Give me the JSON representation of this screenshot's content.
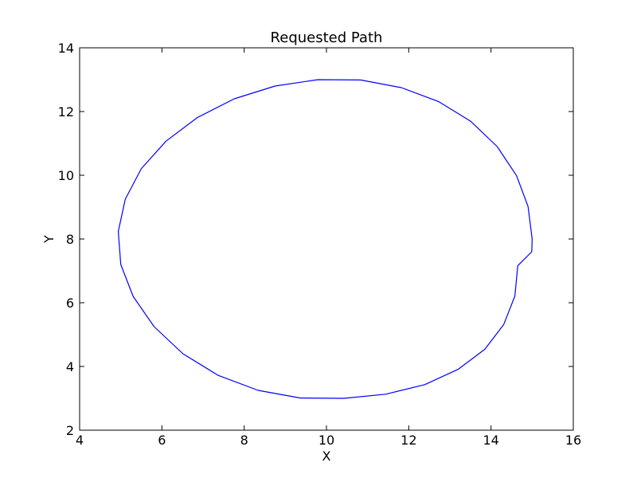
{
  "chart_data": {
    "type": "line",
    "title": "Requested Path",
    "xlabel": "X",
    "ylabel": "Y",
    "xlim": [
      4,
      16
    ],
    "ylim": [
      2,
      14
    ],
    "xticks": [
      4,
      6,
      8,
      10,
      12,
      14,
      16
    ],
    "yticks": [
      2,
      4,
      6,
      8,
      10,
      12,
      14
    ],
    "grid": false,
    "series": [
      {
        "color": "#0000ff",
        "x": [
          15.0,
          14.9,
          14.62,
          14.15,
          13.51,
          12.73,
          11.82,
          10.83,
          9.79,
          8.75,
          7.76,
          6.86,
          6.1,
          5.5,
          5.11,
          4.94,
          5.0,
          5.3,
          5.81,
          6.51,
          7.37,
          8.34,
          9.37,
          10.42,
          11.44,
          12.39,
          13.2,
          13.85,
          14.31,
          14.58,
          14.65,
          14.99,
          15.0
        ],
        "y": [
          8.0,
          9.02,
          9.99,
          10.9,
          11.69,
          12.31,
          12.75,
          12.99,
          13.0,
          12.8,
          12.4,
          11.81,
          11.07,
          10.21,
          9.25,
          8.24,
          7.2,
          6.2,
          5.25,
          4.4,
          3.72,
          3.25,
          3.01,
          3.0,
          3.13,
          3.43,
          3.91,
          4.54,
          5.32,
          6.21,
          7.16,
          7.6,
          8.0
        ]
      }
    ]
  }
}
